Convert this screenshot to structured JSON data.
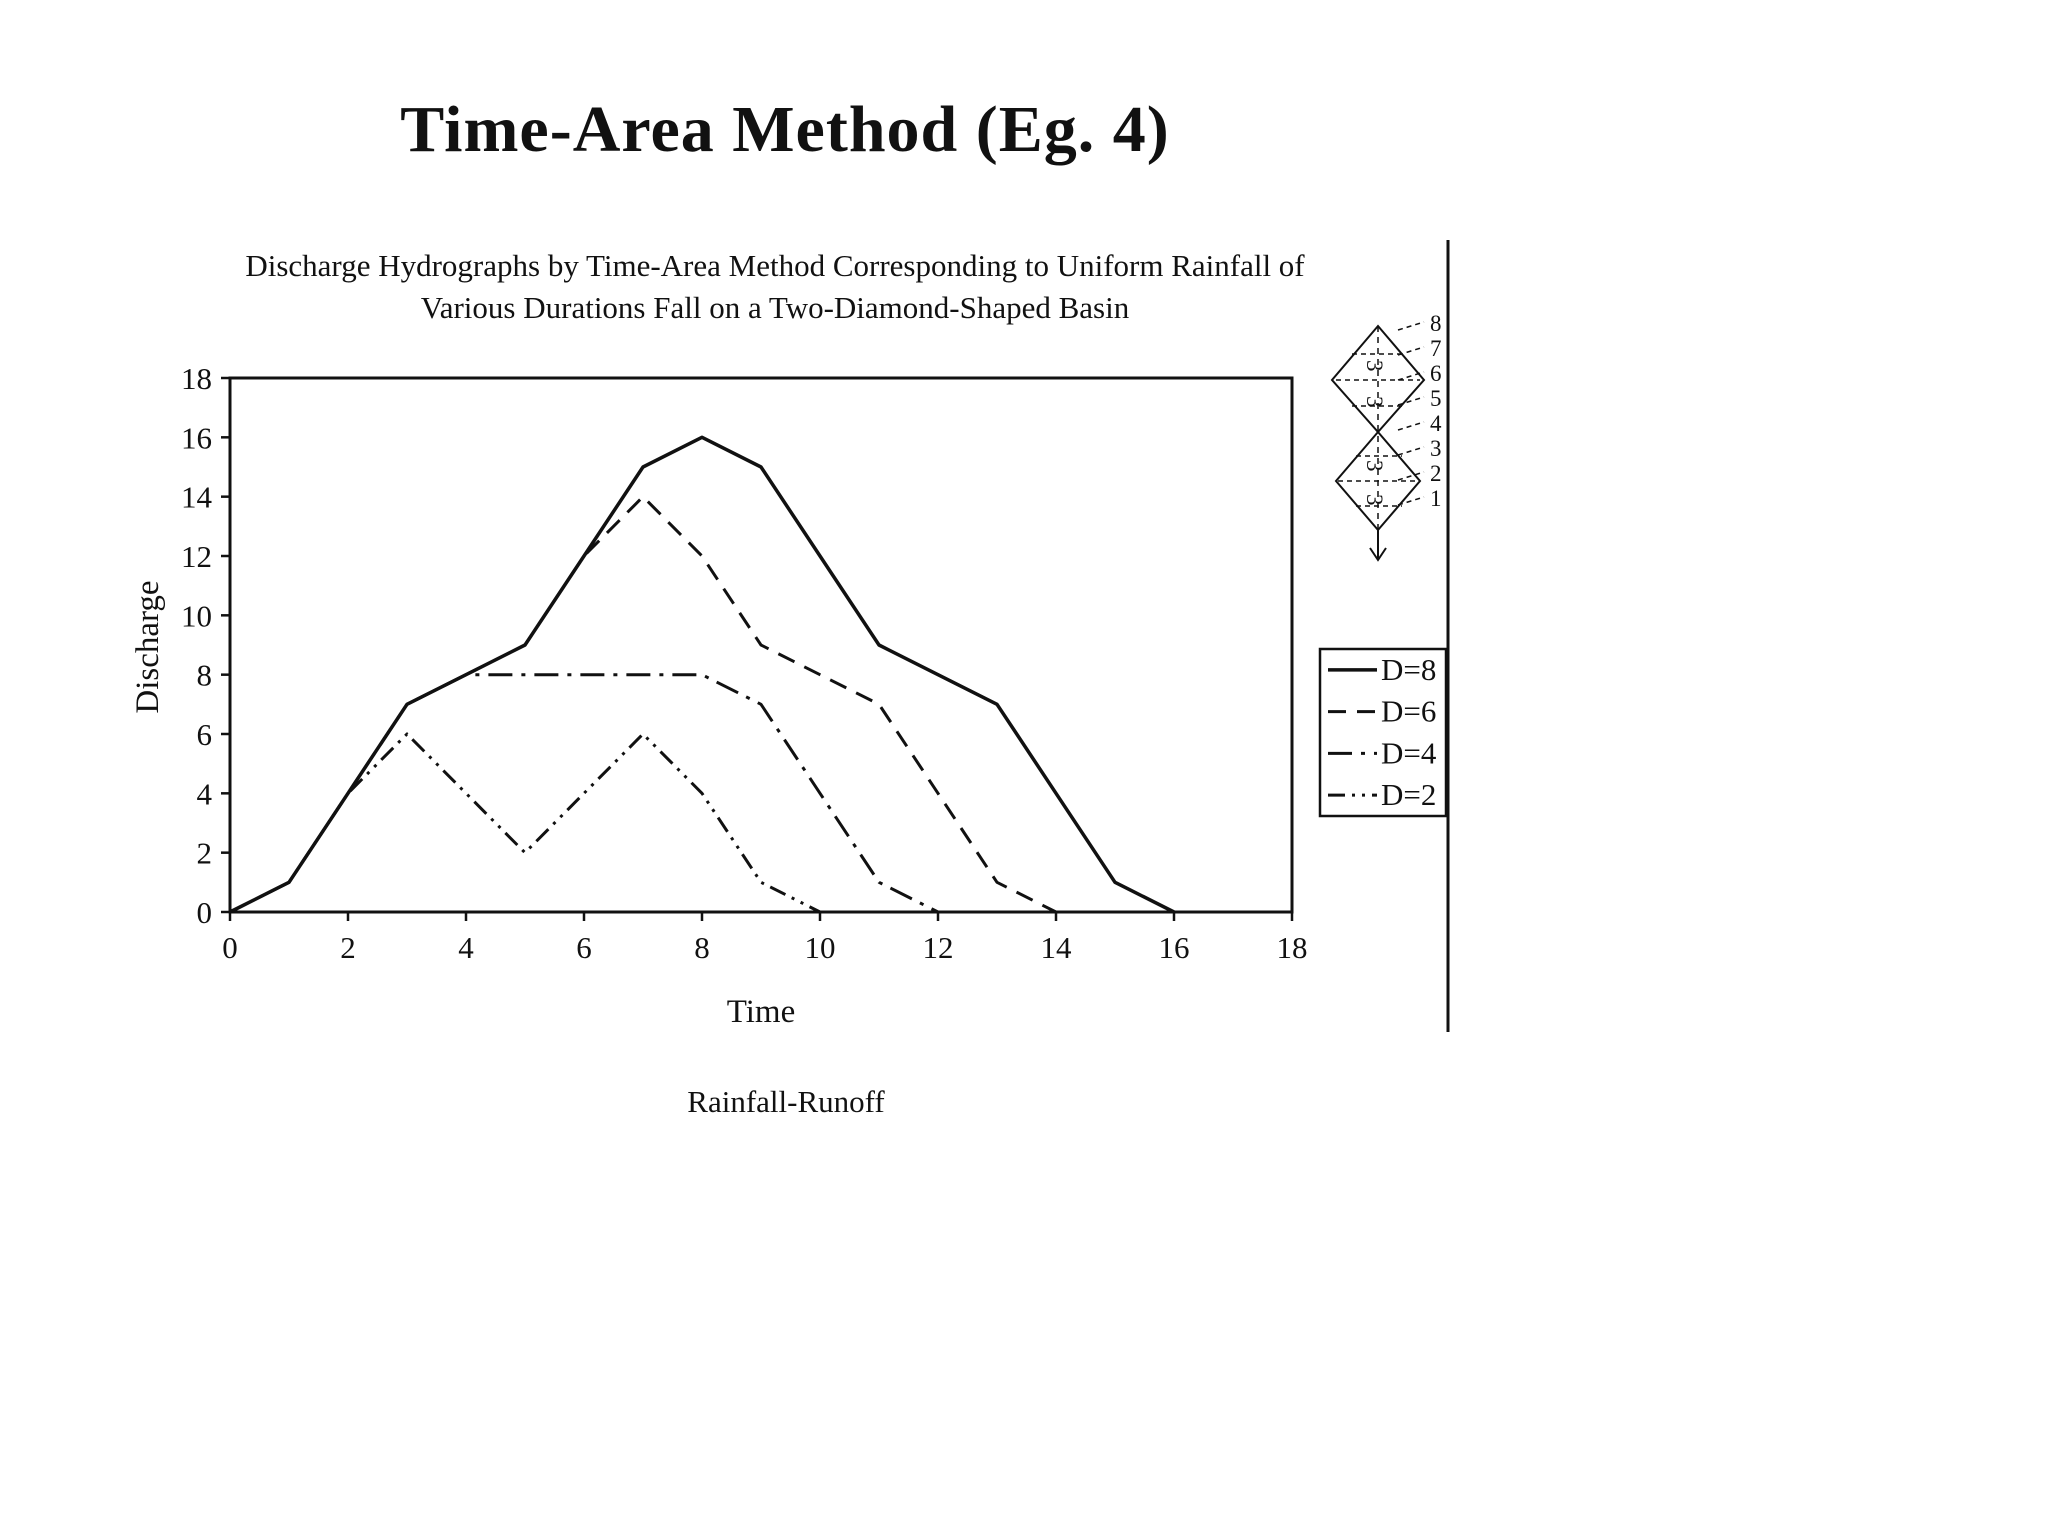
{
  "slide": {
    "title": "Time-Area Method (Eg. 4)",
    "footer": "Rainfall-Runoff"
  },
  "chart_data": {
    "type": "line",
    "title_line1": "Discharge Hydrographs by Time-Area Method Corresponding to Uniform Rainfall of",
    "title_line2": "Various Durations Fall on a Two-Diamond-Shaped Basin",
    "xlabel": "Time",
    "ylabel": "Discharge",
    "xlim": [
      0,
      18
    ],
    "ylim": [
      0,
      18
    ],
    "x_ticks": [
      0,
      2,
      4,
      6,
      8,
      10,
      12,
      14,
      16,
      18
    ],
    "y_ticks": [
      0,
      2,
      4,
      6,
      8,
      10,
      12,
      14,
      16,
      18
    ],
    "grid": false,
    "legend_position": "right-outside",
    "ink_color": "#111111",
    "series": [
      {
        "name": "D=8",
        "style": "solid",
        "points": [
          [
            0,
            0
          ],
          [
            1,
            1
          ],
          [
            2,
            4
          ],
          [
            3,
            7
          ],
          [
            4,
            8
          ],
          [
            5,
            9
          ],
          [
            6,
            12
          ],
          [
            7,
            15
          ],
          [
            8,
            16
          ],
          [
            9,
            15
          ],
          [
            10,
            12
          ],
          [
            11,
            9
          ],
          [
            12,
            8
          ],
          [
            13,
            7
          ],
          [
            14,
            4
          ],
          [
            15,
            1
          ],
          [
            16,
            0
          ]
        ]
      },
      {
        "name": "D=6",
        "style": "dashed",
        "points": [
          [
            0,
            0
          ],
          [
            1,
            1
          ],
          [
            2,
            4
          ],
          [
            3,
            7
          ],
          [
            4,
            8
          ],
          [
            5,
            9
          ],
          [
            6,
            12
          ],
          [
            7,
            14
          ],
          [
            8,
            12
          ],
          [
            9,
            9
          ],
          [
            10,
            8
          ],
          [
            11,
            7
          ],
          [
            12,
            4
          ],
          [
            13,
            1
          ],
          [
            14,
            0
          ]
        ]
      },
      {
        "name": "D=4",
        "style": "dash-dot",
        "points": [
          [
            0,
            0
          ],
          [
            1,
            1
          ],
          [
            2,
            4
          ],
          [
            3,
            7
          ],
          [
            4,
            8
          ],
          [
            5,
            8
          ],
          [
            6,
            8
          ],
          [
            7,
            8
          ],
          [
            8,
            8
          ],
          [
            9,
            7
          ],
          [
            10,
            4
          ],
          [
            11,
            1
          ],
          [
            12,
            0
          ]
        ]
      },
      {
        "name": "D=2",
        "style": "dash-dot-dot",
        "points": [
          [
            0,
            0
          ],
          [
            1,
            1
          ],
          [
            2,
            4
          ],
          [
            3,
            6
          ],
          [
            4,
            4
          ],
          [
            5,
            2
          ],
          [
            6,
            4
          ],
          [
            7,
            6
          ],
          [
            8,
            4
          ],
          [
            9,
            1
          ],
          [
            10,
            0
          ]
        ]
      }
    ]
  },
  "basin_sketch": {
    "isochrone_labels": [
      "8",
      "7",
      "6",
      "5",
      "4",
      "3",
      "2",
      "1"
    ],
    "area_labels": [
      "3",
      "3",
      "3",
      "3"
    ]
  }
}
